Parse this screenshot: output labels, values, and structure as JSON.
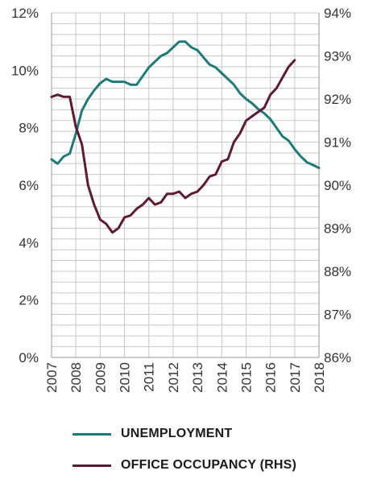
{
  "chart_data": {
    "type": "line",
    "title": "",
    "x_ticks": [
      "2007",
      "2008",
      "2009",
      "2010",
      "2011",
      "2012",
      "2013",
      "2014",
      "2015",
      "2016",
      "2017",
      "2018"
    ],
    "xlim": [
      2007,
      2018
    ],
    "y_left": {
      "ticks": [
        "0%",
        "2%",
        "4%",
        "6%",
        "8%",
        "10%",
        "12%"
      ],
      "ylim": [
        0,
        12
      ]
    },
    "y_right": {
      "ticks": [
        "86%",
        "87%",
        "88%",
        "89%",
        "90%",
        "91%",
        "92%",
        "93%",
        "94%"
      ],
      "ylim": [
        86,
        94
      ]
    },
    "grid": true,
    "legend": "bottom",
    "series": [
      {
        "name": "UNEMPLOYMENT",
        "axis": "left",
        "color": "#1f7a78",
        "x": [
          2007.0,
          2007.25,
          2007.5,
          2007.75,
          2008.0,
          2008.25,
          2008.5,
          2008.75,
          2009.0,
          2009.25,
          2009.5,
          2009.75,
          2010.0,
          2010.25,
          2010.5,
          2010.75,
          2011.0,
          2011.25,
          2011.5,
          2011.75,
          2012.0,
          2012.25,
          2012.5,
          2012.75,
          2013.0,
          2013.25,
          2013.5,
          2013.75,
          2014.0,
          2014.25,
          2014.5,
          2014.75,
          2015.0,
          2015.25,
          2015.5,
          2015.75,
          2016.0,
          2016.25,
          2016.5,
          2016.75,
          2017.0,
          2017.25,
          2017.5,
          2017.75,
          2018.0
        ],
        "values": [
          6.9,
          6.75,
          7.0,
          7.1,
          7.8,
          8.6,
          9.0,
          9.3,
          9.55,
          9.7,
          9.6,
          9.6,
          9.6,
          9.5,
          9.5,
          9.8,
          10.1,
          10.3,
          10.5,
          10.6,
          10.8,
          11.0,
          11.0,
          10.8,
          10.7,
          10.45,
          10.2,
          10.1,
          9.9,
          9.7,
          9.5,
          9.2,
          9.0,
          8.85,
          8.65,
          8.5,
          8.3,
          8.0,
          7.7,
          7.55,
          7.25,
          7.0,
          6.8,
          6.7,
          6.6
        ]
      },
      {
        "name": "OFFICE OCCUPANCY (RHS)",
        "axis": "right",
        "color": "#5b1a36",
        "x": [
          2007.0,
          2007.25,
          2007.5,
          2007.75,
          2008.0,
          2008.25,
          2008.5,
          2008.75,
          2009.0,
          2009.25,
          2009.5,
          2009.75,
          2010.0,
          2010.25,
          2010.5,
          2010.75,
          2011.0,
          2011.25,
          2011.5,
          2011.75,
          2012.0,
          2012.25,
          2012.5,
          2012.75,
          2013.0,
          2013.25,
          2013.5,
          2013.75,
          2014.0,
          2014.25,
          2014.5,
          2014.75,
          2015.0,
          2015.25,
          2015.5,
          2015.75,
          2016.0,
          2016.25,
          2016.5,
          2016.75,
          2017.0
        ],
        "values": [
          92.05,
          92.1,
          92.05,
          92.05,
          91.35,
          90.95,
          90.0,
          89.55,
          89.2,
          89.1,
          88.9,
          89.0,
          89.25,
          89.3,
          89.45,
          89.55,
          89.7,
          89.55,
          89.6,
          89.8,
          89.8,
          89.85,
          89.7,
          89.8,
          89.85,
          90.0,
          90.2,
          90.25,
          90.55,
          90.6,
          91.0,
          91.2,
          91.5,
          91.6,
          91.7,
          91.8,
          92.1,
          92.25,
          92.5,
          92.75,
          92.9
        ]
      }
    ]
  }
}
